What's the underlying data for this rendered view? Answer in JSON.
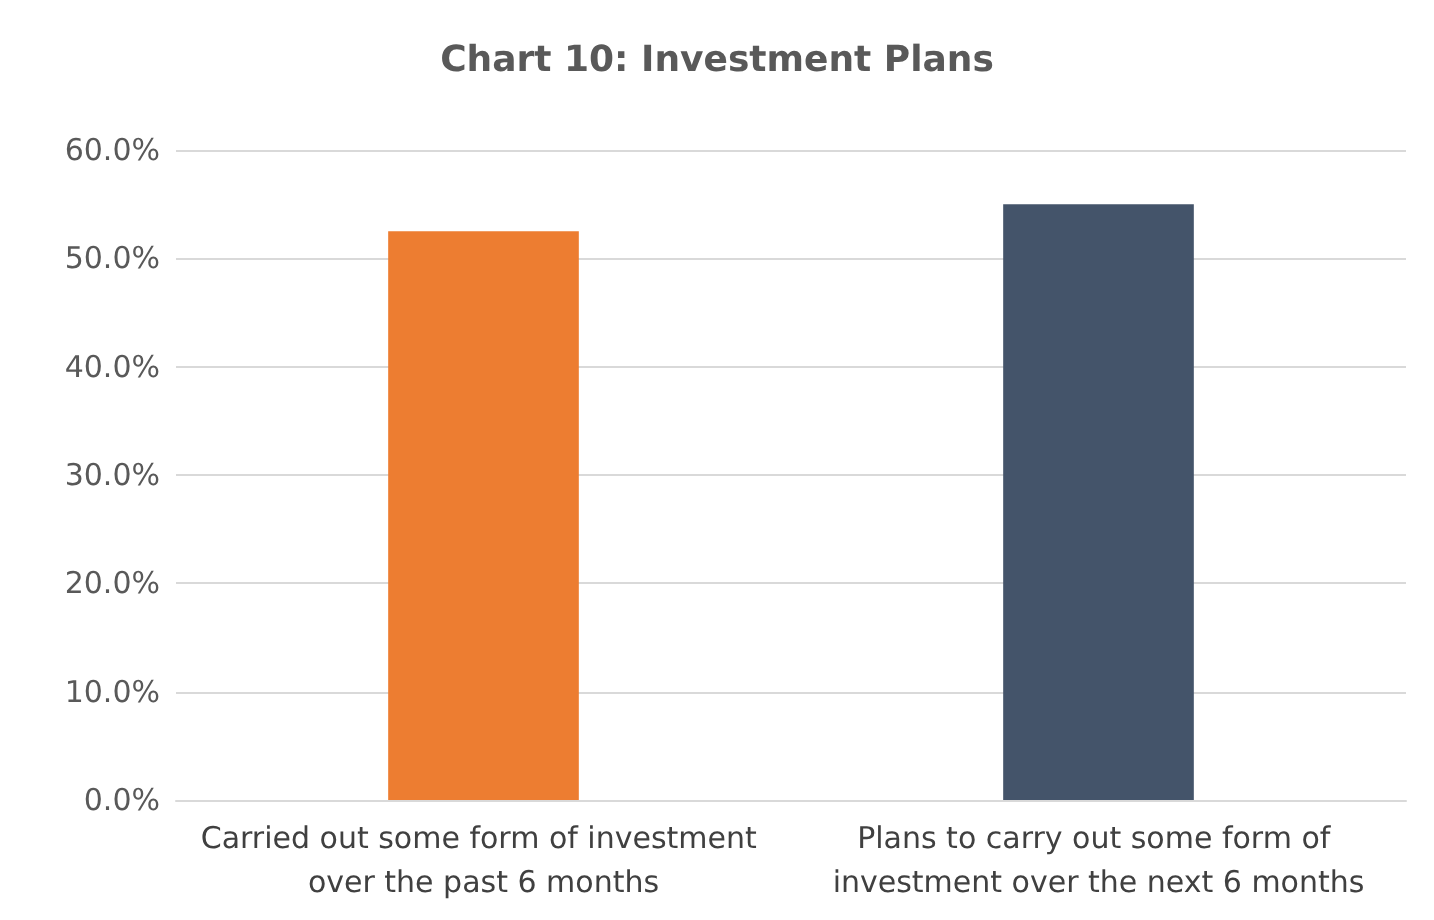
{
  "chart_data": {
    "type": "bar",
    "title": "Chart 10: Investment Plans",
    "categories": [
      "Carried out some form of investment over the past 6 months",
      "Plans to carry out some form of investment over the next 6 months"
    ],
    "values": [
      52.5,
      55
    ],
    "colors": [
      "#ed7d31",
      "#44546a"
    ],
    "ylim": [
      0,
      60
    ],
    "yticks": [
      {
        "value": 0,
        "label": "0.0%"
      },
      {
        "value": 10,
        "label": "10.0%"
      },
      {
        "value": 20,
        "label": "20.0%"
      },
      {
        "value": 30,
        "label": "30.0%"
      },
      {
        "value": 40,
        "label": "40.0%"
      },
      {
        "value": 50,
        "label": "50.0%"
      },
      {
        "value": 60,
        "label": "60.0%"
      }
    ],
    "grid": "y"
  }
}
